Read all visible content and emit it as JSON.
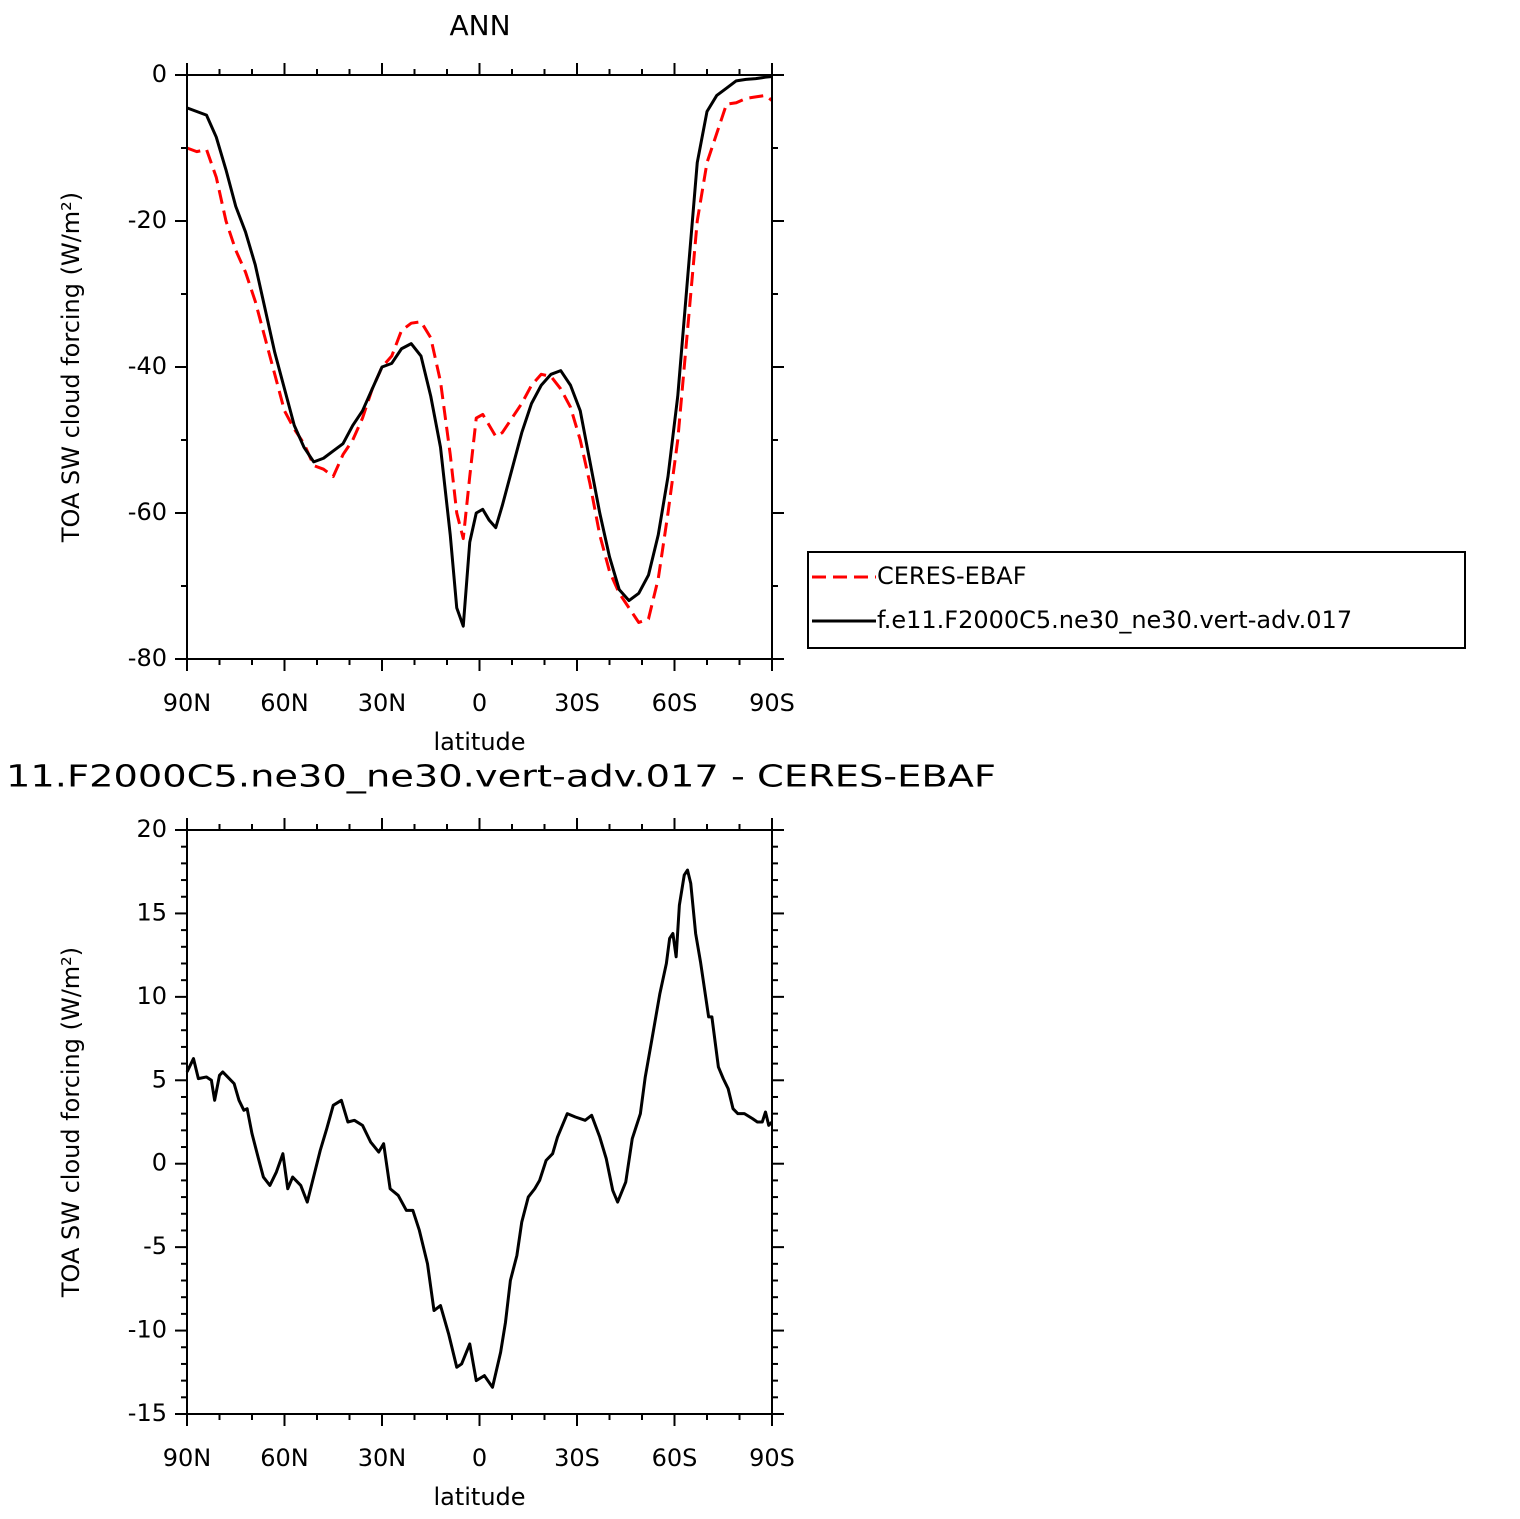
{
  "chart_data": [
    {
      "type": "line",
      "title": "ANN",
      "x_label": "latitude",
      "y_label": "TOA SW cloud forcing (W/m²)",
      "xlim": [
        90,
        -90
      ],
      "xticks": [
        {
          "value": 90,
          "label": "90N"
        },
        {
          "value": 60,
          "label": "60N"
        },
        {
          "value": 30,
          "label": "30N"
        },
        0,
        {
          "value": -30,
          "label": "30S"
        },
        {
          "value": -60,
          "label": "60S"
        },
        {
          "value": -90,
          "label": "90S"
        }
      ],
      "ylim": [
        -80,
        0
      ],
      "yticks": [
        0,
        -20,
        -40,
        -60,
        -80
      ],
      "legend": "right",
      "x": [
        90,
        87,
        84,
        81,
        78,
        75,
        72,
        69,
        66,
        63,
        60,
        57,
        54,
        51,
        48,
        45,
        42,
        39,
        36,
        33,
        30,
        27,
        24,
        21,
        18,
        15,
        12,
        9,
        7,
        5,
        3,
        1,
        -1,
        -3,
        -5,
        -7,
        -10,
        -13,
        -16,
        -19,
        -22,
        -25,
        -28,
        -31,
        -34,
        -37,
        -40,
        -43,
        -46,
        -49,
        -52,
        -55,
        -58,
        -61,
        -64,
        -67,
        -70,
        -73,
        -76,
        -79,
        -82,
        -85,
        -88,
        -90
      ],
      "series": [
        {
          "name": "CERES-EBAF",
          "color": "#ff0000",
          "line_style": "dashed",
          "values": [
            -10,
            -10.5,
            -10.2,
            -14,
            -20,
            -24,
            -27,
            -31,
            -36,
            -41,
            -46,
            -48.5,
            -50.5,
            -53.5,
            -54,
            -55,
            -52,
            -50,
            -47,
            -43,
            -40,
            -38.5,
            -35,
            -34,
            -33.8,
            -36,
            -42,
            -52,
            -60,
            -63.5,
            -55,
            -47,
            -46.5,
            -48,
            -49.5,
            -49,
            -47,
            -45,
            -42.5,
            -41,
            -41.3,
            -43,
            -45.5,
            -50,
            -56,
            -63,
            -68,
            -71,
            -73,
            -75,
            -74.5,
            -69,
            -60,
            -50,
            -35,
            -20,
            -12,
            -8,
            -4,
            -3.8,
            -3.2,
            -3,
            -2.8,
            -3.5
          ]
        },
        {
          "name": "f.e11.F2000C5.ne30_ne30.vert-adv.017",
          "color": "#000000",
          "line_style": "solid",
          "values": [
            -4.5,
            -5,
            -5.5,
            -8.5,
            -13,
            -18,
            -21.5,
            -26,
            -32,
            -38,
            -43,
            -48,
            -51,
            -53,
            -52.5,
            -51.5,
            -50.5,
            -48,
            -46,
            -43,
            -40,
            -39.5,
            -37.5,
            -36.8,
            -38.5,
            -44,
            -51,
            -63,
            -73,
            -75.5,
            -64,
            -60,
            -59.5,
            -61,
            -62,
            -59,
            -54,
            -49,
            -45,
            -42.5,
            -41,
            -40.5,
            -42.5,
            -46,
            -53,
            -60,
            -66,
            -70.5,
            -72,
            -71,
            -68.5,
            -63,
            -55,
            -44,
            -28,
            -12,
            -5,
            -2.8,
            -1.8,
            -0.8,
            -0.6,
            -0.5,
            -0.3,
            -0.2
          ]
        }
      ]
    },
    {
      "type": "line",
      "title": "11.F2000C5.ne30_ne30.vert-adv.017 - CERES-EBAF",
      "x_label": "latitude",
      "y_label": "TOA SW cloud forcing (W/m²)",
      "xlim": [
        90,
        -90
      ],
      "xticks": [
        {
          "value": 90,
          "label": "90N"
        },
        {
          "value": 60,
          "label": "60N"
        },
        {
          "value": 30,
          "label": "30N"
        },
        0,
        {
          "value": -30,
          "label": "30S"
        },
        {
          "value": -60,
          "label": "60S"
        },
        {
          "value": -90,
          "label": "90S"
        }
      ],
      "ylim": [
        -15,
        20
      ],
      "yticks": [
        20,
        15,
        10,
        5,
        0,
        -5,
        -10,
        -15
      ],
      "color": "#000000",
      "x": [
        90,
        88,
        86.5,
        84,
        82.5,
        81.5,
        80,
        79,
        77.5,
        75.5,
        74,
        72.5,
        71.5,
        70,
        68,
        66.5,
        64.5,
        62.5,
        60.5,
        59,
        57.5,
        55,
        53,
        49,
        47,
        45,
        42.5,
        40.5,
        38.5,
        36,
        33.5,
        31,
        29.5,
        27.5,
        25,
        22.5,
        20.5,
        18.5,
        16,
        14,
        12,
        9.5,
        7,
        5.5,
        3,
        1,
        -1.5,
        -4,
        -6.5,
        -8,
        -9.5,
        -11.5,
        -13,
        -15,
        -17,
        -18.5,
        -20.5,
        -22.5,
        -24,
        -27,
        -29.5,
        -32.5,
        -34.5,
        -37,
        -39,
        -41,
        -42.5,
        -45,
        -47,
        -49.5,
        -51,
        -53,
        -55.5,
        -57.5,
        -58.5,
        -59.5,
        -60.5,
        -61.5,
        -63,
        -64,
        -65,
        -66.5,
        -68,
        -70.5,
        -71.5,
        -73.5,
        -75,
        -76.5,
        -78,
        -79.5,
        -81.5,
        -84,
        -85.5,
        -87,
        -88,
        -89,
        -90
      ],
      "values": [
        5.5,
        6.3,
        5.1,
        5.2,
        5,
        3.8,
        5.3,
        5.5,
        5.2,
        4.8,
        3.8,
        3.2,
        3.3,
        1.8,
        0.3,
        -0.8,
        -1.3,
        -0.5,
        0.6,
        -1.5,
        -0.8,
        -1.3,
        -2.3,
        0.8,
        2.1,
        3.5,
        3.8,
        2.5,
        2.6,
        2.3,
        1.3,
        0.7,
        1.2,
        -1.5,
        -1.9,
        -2.8,
        -2.8,
        -4,
        -6,
        -8.8,
        -8.5,
        -10.2,
        -12.2,
        -12,
        -10.8,
        -13,
        -12.7,
        -13.4,
        -11.3,
        -9.5,
        -7,
        -5.5,
        -3.5,
        -2,
        -1.5,
        -1,
        0.2,
        0.6,
        1.6,
        3,
        2.8,
        2.6,
        2.9,
        1.6,
        0.3,
        -1.6,
        -2.3,
        -1.1,
        1.5,
        3,
        5.2,
        7.4,
        10.2,
        12,
        13.5,
        13.8,
        12.4,
        15.5,
        17.3,
        17.6,
        16.8,
        13.8,
        12.1,
        8.8,
        8.8,
        5.8,
        5.1,
        4.5,
        3.3,
        3,
        3,
        2.7,
        2.5,
        2.5,
        3.1,
        2.3,
        2.5
      ]
    }
  ]
}
